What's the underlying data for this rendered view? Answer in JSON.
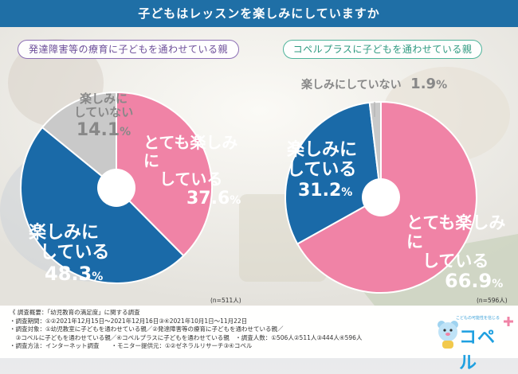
{
  "header": {
    "title": "子どもはレッスンを楽しみにしていますか"
  },
  "chart_data": [
    {
      "type": "pie",
      "title": "発達障害等の療育に子どもを通わせている親",
      "n_label": "(n=511人)",
      "slices": [
        {
          "line1": "とても楽しみに",
          "line2": "している",
          "value": 37.6,
          "color": "#f083a6"
        },
        {
          "line1": "楽しみに",
          "line2": "している",
          "value": 48.3,
          "color": "#1a6aa8"
        },
        {
          "line1": "楽しみに",
          "line2": "していない",
          "value": 14.1,
          "color": "#c9c9c9"
        }
      ]
    },
    {
      "type": "pie",
      "title": "コペルプラスに子どもを通わせている親",
      "n_label": "(n=596人)",
      "slices": [
        {
          "line1": "とても楽しみに",
          "line2": "している",
          "value": 66.9,
          "color": "#f083a6"
        },
        {
          "line1": "楽しみに",
          "line2": "している",
          "value": 31.2,
          "color": "#1a6aa8"
        },
        {
          "line1": "楽しみにしていない",
          "line2": "",
          "value": 1.9,
          "color": "#c9c9c9"
        }
      ]
    }
  ],
  "footer": {
    "lines": [
      "《 調査概要：「幼児教育の満足度」に関する調査",
      "・調査期間：①②2021年12月15日～2021年12月16日③④2021年10月1日～11月22日",
      "・調査対象：①幼児教室に子どもを通わせている親／②発達障害等の療育に子どもを通わせている親／",
      "　③コペルに子どもを通わせている親／④コペルプラスに子どもを通わせている親　・調査人数：①506人②511人③444人④596人",
      "・調査方法：インターネット調査　　・モニター提供元：①②ゼネラルリサーチ③④コペル"
    ]
  },
  "logo": {
    "tagline": "こどもの可能性を信じる",
    "name": "コペル"
  },
  "colors": {
    "header": "#1f6fa6",
    "pink": "#f083a6",
    "blue": "#1a6aa8",
    "grey": "#c9c9c9"
  }
}
